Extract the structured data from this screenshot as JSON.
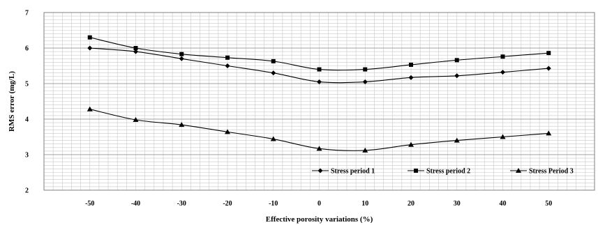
{
  "chart_data": {
    "type": "line",
    "xlabel": "Effective porosity variations (%)",
    "ylabel": "RMS error (mg/L)",
    "xlim": [
      -60,
      60
    ],
    "ylim": [
      2,
      7
    ],
    "x_ticks": [
      -50,
      -40,
      -30,
      -20,
      -10,
      0,
      10,
      20,
      30,
      40,
      50
    ],
    "y_ticks": [
      2,
      3,
      4,
      5,
      6,
      7
    ],
    "grid": true,
    "legend_position": "bottom-right",
    "x": [
      -50,
      -40,
      -30,
      -20,
      -10,
      0,
      10,
      20,
      30,
      40,
      50
    ],
    "series": [
      {
        "name": "Stress period 1",
        "marker": "diamond",
        "values": [
          6.0,
          5.9,
          5.7,
          5.5,
          5.3,
          5.05,
          5.05,
          5.17,
          5.22,
          5.32,
          5.43
        ]
      },
      {
        "name": "Stress period 2",
        "marker": "square",
        "values": [
          6.3,
          6.0,
          5.83,
          5.73,
          5.63,
          5.4,
          5.4,
          5.53,
          5.66,
          5.76,
          5.86
        ]
      },
      {
        "name": "Stress Period 3",
        "marker": "triangle",
        "values": [
          4.28,
          3.98,
          3.84,
          3.64,
          3.44,
          3.17,
          3.12,
          3.28,
          3.4,
          3.5,
          3.6
        ]
      }
    ],
    "colors": {
      "line": "#000000",
      "grid": "#c8c8c8",
      "axis": "#7f7f7f"
    }
  }
}
